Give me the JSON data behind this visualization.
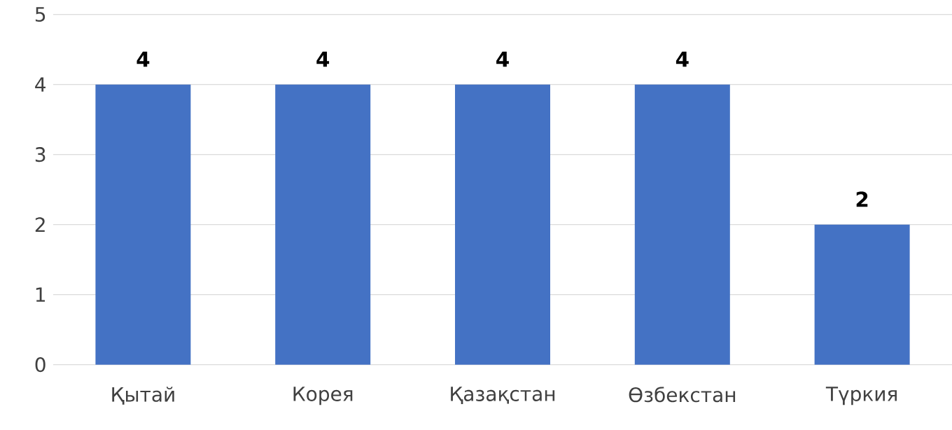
{
  "chart_data": {
    "type": "bar",
    "categories": [
      "Қытай",
      "Корея",
      "Қазақстан",
      "Өзбекстан",
      "Түркия"
    ],
    "values": [
      4,
      4,
      4,
      4,
      2
    ],
    "color": "#4472c4",
    "ylim": [
      0,
      5
    ],
    "yticks": [
      0,
      1,
      2,
      3,
      4,
      5
    ],
    "grid": "y",
    "data_labels": true
  }
}
